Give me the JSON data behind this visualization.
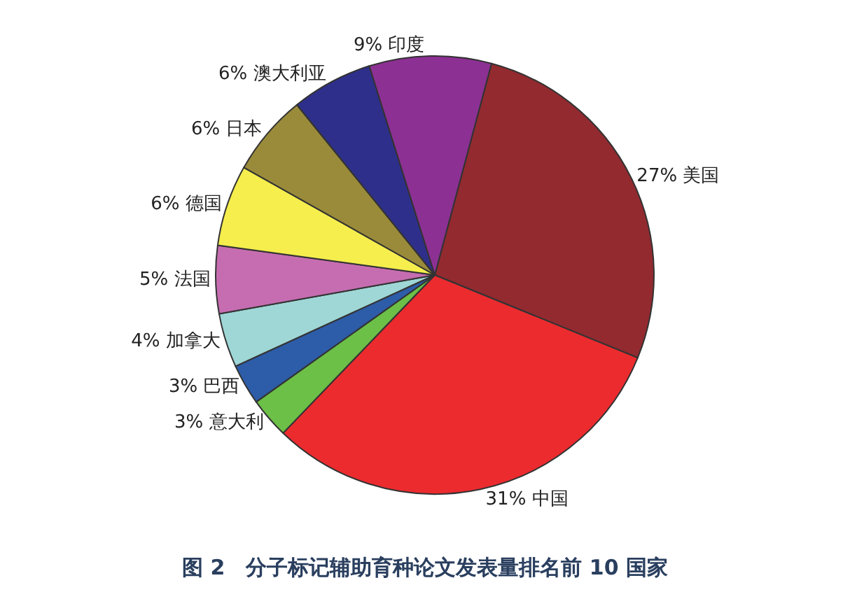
{
  "chart_data": {
    "type": "pie",
    "title": "图 2　分子标记辅助育种论文发表量排名前 10 国家",
    "categories": [
      "美国",
      "中国",
      "意大利",
      "巴西",
      "加拿大",
      "法国",
      "德国",
      "日本",
      "澳大利亚",
      "印度"
    ],
    "values": [
      27,
      31,
      3,
      3,
      4,
      5,
      6,
      6,
      6,
      9
    ],
    "value_labels": [
      "27%",
      "31%",
      "3%",
      "3%",
      "4%",
      "5%",
      "6%",
      "6%",
      "6%",
      "9%"
    ],
    "colors": [
      "#922a30",
      "#ec2b2f",
      "#6cbf47",
      "#2d5ca8",
      "#9fd6d6",
      "#c66db1",
      "#f5ee4d",
      "#9a8b3a",
      "#2e2f8b",
      "#8d3094"
    ],
    "legend": false
  }
}
